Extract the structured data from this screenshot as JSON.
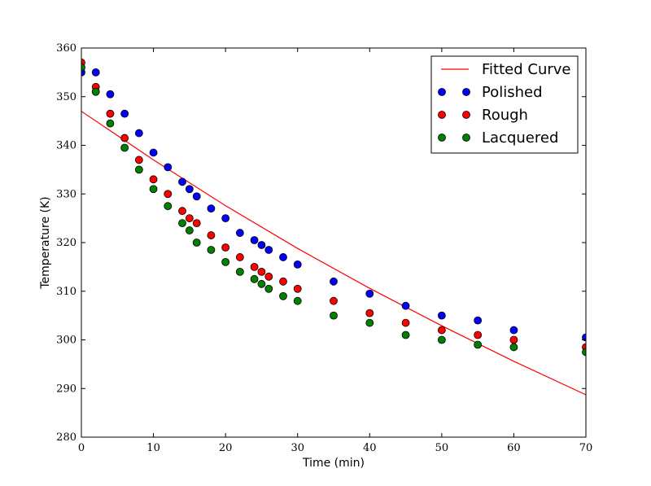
{
  "chart_data": {
    "type": "scatter",
    "title": "",
    "xlabel": "Time (min)",
    "ylabel": "Temperature (K)",
    "xlim": [
      0,
      70
    ],
    "ylim": [
      280,
      360
    ],
    "xticks": [
      0,
      10,
      20,
      30,
      40,
      50,
      60,
      70
    ],
    "yticks": [
      280,
      290,
      300,
      310,
      320,
      330,
      340,
      350,
      360
    ],
    "grid": false,
    "legend_position": "top-right",
    "fitted_curve": {
      "name": "Fitted Curve",
      "color": "#ff0000",
      "x": [
        0,
        10,
        20,
        30,
        40,
        50,
        60,
        70
      ],
      "y": [
        347.0,
        337.0,
        327.6,
        318.8,
        310.6,
        302.9,
        295.6,
        288.7
      ]
    },
    "series": [
      {
        "name": "Polished",
        "color": "#0000ff",
        "x": [
          0,
          2,
          4,
          6,
          8,
          10,
          12,
          14,
          15,
          16,
          18,
          20,
          22,
          24,
          25,
          26,
          28,
          30,
          35,
          40,
          45,
          50,
          55,
          60,
          70
        ],
        "y": [
          355.0,
          355.0,
          350.5,
          346.5,
          342.5,
          338.5,
          335.5,
          332.5,
          331.0,
          329.5,
          327.0,
          325.0,
          322.0,
          320.5,
          319.5,
          318.5,
          317.0,
          315.5,
          312.0,
          309.5,
          307.0,
          305.0,
          304.0,
          302.0,
          300.5
        ]
      },
      {
        "name": "Rough",
        "color": "#ff0000",
        "x": [
          0,
          2,
          4,
          6,
          8,
          10,
          12,
          14,
          15,
          16,
          18,
          20,
          22,
          24,
          25,
          26,
          28,
          30,
          35,
          40,
          45,
          50,
          55,
          60,
          70
        ],
        "y": [
          357.0,
          352.0,
          346.5,
          341.5,
          337.0,
          333.0,
          330.0,
          326.5,
          325.0,
          324.0,
          321.5,
          319.0,
          317.0,
          315.0,
          314.0,
          313.0,
          312.0,
          310.5,
          308.0,
          305.5,
          303.5,
          302.0,
          301.0,
          300.0,
          298.5
        ]
      },
      {
        "name": "Lacquered",
        "color": "#008000",
        "x": [
          0,
          2,
          4,
          6,
          8,
          10,
          12,
          14,
          15,
          16,
          18,
          20,
          22,
          24,
          25,
          26,
          28,
          30,
          35,
          40,
          45,
          50,
          55,
          60,
          70
        ],
        "y": [
          356.0,
          351.0,
          344.5,
          339.5,
          335.0,
          331.0,
          327.5,
          324.0,
          322.5,
          320.0,
          318.5,
          316.0,
          314.0,
          312.5,
          311.5,
          310.5,
          309.0,
          308.0,
          305.0,
          303.5,
          301.0,
          300.0,
          299.0,
          298.5,
          297.5
        ]
      }
    ]
  }
}
